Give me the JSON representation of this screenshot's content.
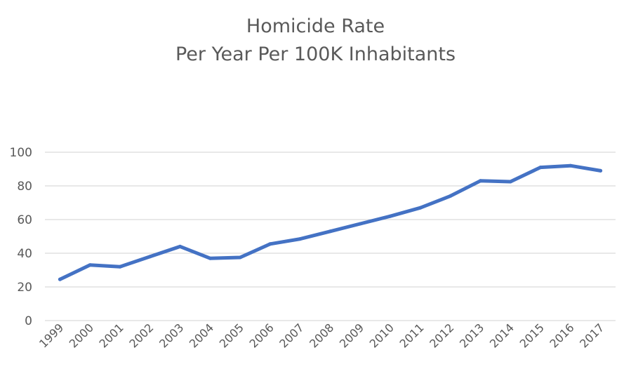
{
  "chart_data": {
    "type": "line",
    "title": [
      "Homicide Rate",
      "Per Year Per 100K Inhabitants"
    ],
    "xlabel": "",
    "ylabel": "",
    "ylim": [
      0,
      100
    ],
    "yticks": [
      "0",
      "20",
      "40",
      "60",
      "80",
      "100"
    ],
    "grid": true,
    "legend": "none",
    "categories": [
      "1999",
      "2000",
      "2001",
      "2002",
      "2003",
      "2004",
      "2005",
      "2006",
      "2007",
      "2008",
      "2009",
      "2010",
      "2011",
      "2012",
      "2013",
      "2014",
      "2015",
      "2016",
      "2017"
    ],
    "series": [
      {
        "color": "#4472C4",
        "values": [
          24.5,
          33,
          32,
          38,
          44,
          37,
          37.5,
          45.5,
          48.5,
          53,
          57.5,
          62,
          67,
          74,
          83,
          82.5,
          91,
          92,
          89
        ]
      }
    ]
  }
}
